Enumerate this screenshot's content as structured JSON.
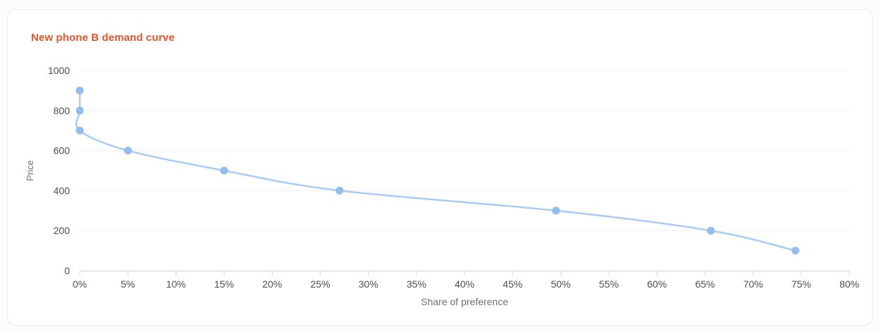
{
  "chart_data": {
    "type": "line",
    "title": "New phone B demand curve",
    "xlabel": "Share of preference",
    "ylabel": "Price",
    "xlim": [
      0,
      80
    ],
    "ylim": [
      0,
      1000
    ],
    "x_ticks": [
      0,
      5,
      10,
      15,
      20,
      25,
      30,
      35,
      40,
      45,
      50,
      55,
      60,
      65,
      70,
      75,
      80
    ],
    "x_tick_suffix": "%",
    "y_ticks": [
      0,
      200,
      400,
      600,
      800,
      1000
    ],
    "grid": "horizontal-only",
    "legend": "none",
    "smooth": true,
    "series": [
      {
        "name": "New phone B",
        "points": [
          {
            "x": 0,
            "y": 900
          },
          {
            "x": 0,
            "y": 800
          },
          {
            "x": 0,
            "y": 700
          },
          {
            "x": 5,
            "y": 600
          },
          {
            "x": 15,
            "y": 500
          },
          {
            "x": 27,
            "y": 400
          },
          {
            "x": 49.5,
            "y": 300
          },
          {
            "x": 65.6,
            "y": 200
          },
          {
            "x": 74.4,
            "y": 100
          }
        ]
      }
    ],
    "colors": {
      "title": "#e4552e",
      "line": "#a8ccf4",
      "marker": "#92bdf0"
    }
  }
}
